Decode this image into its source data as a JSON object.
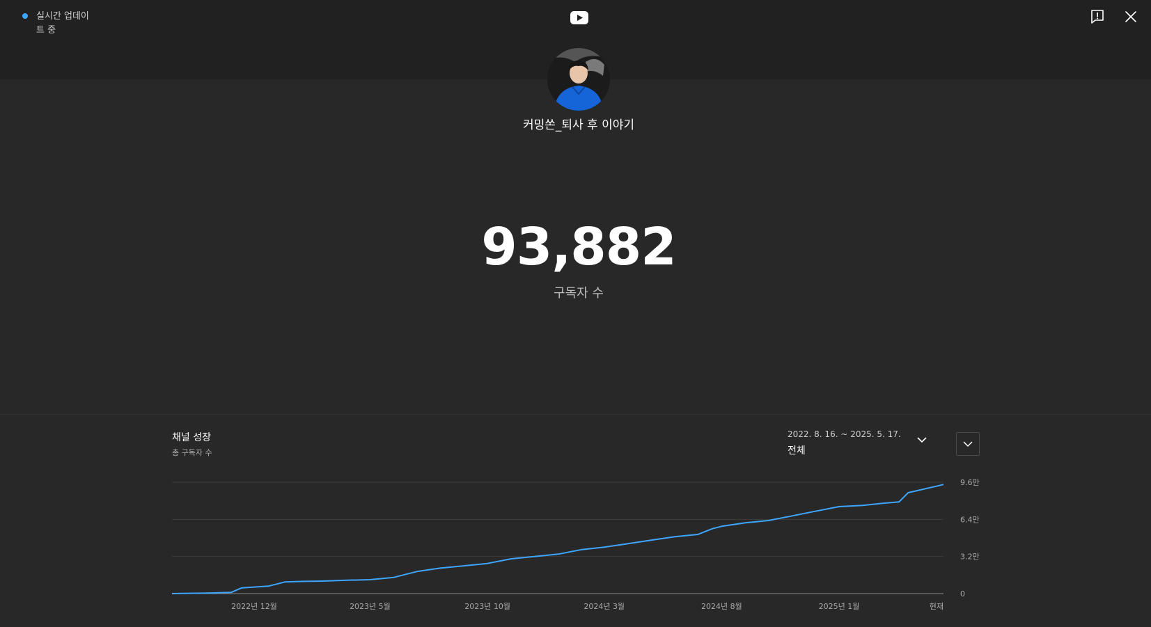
{
  "header": {
    "live_status": "실시간 업데이트 중"
  },
  "icons": {
    "live": "live-dot-icon",
    "logo": "youtube-logo-icon",
    "report": "feedback-report-icon",
    "close": "close-icon",
    "chevron": "chevron-down-icon"
  },
  "channel": {
    "name": "커밍쏜_퇴사 후 이야기",
    "subscriber_count": "93,882",
    "subscriber_label": "구독자 수"
  },
  "growth": {
    "title": "채널 성장",
    "subtitle": "총 구독자 수",
    "range_dates": "2022. 8. 16. ~ 2025. 5. 17.",
    "range_value": "전체"
  },
  "colors": {
    "accent": "#3ea6ff",
    "background": "#282828",
    "header_bg": "#212121"
  },
  "chart_data": {
    "type": "line",
    "title": "",
    "xlabel": "",
    "ylabel": "",
    "grid": true,
    "x_tick_labels": [
      "2022년 12월",
      "2023년 5월",
      "2023년 10월",
      "2024년 3월",
      "2024년 8월",
      "2025년 1월",
      "현재"
    ],
    "x_tick_dates": [
      "2022-12-01",
      "2023-05-01",
      "2023-10-01",
      "2024-03-01",
      "2024-08-01",
      "2025-01-01",
      "2025-05-17"
    ],
    "y_tick_labels": [
      "0",
      "3.2만",
      "6.4만",
      "9.6만"
    ],
    "y_tick_values": [
      0,
      32000,
      64000,
      96000
    ],
    "ylim": [
      0,
      96000
    ],
    "xlim": [
      "2022-08-16",
      "2025-05-17"
    ],
    "series": [
      {
        "x": [
          "2022-08-16",
          "2022-10-01",
          "2022-11-01",
          "2022-11-15",
          "2022-12-20",
          "2023-01-10",
          "2023-02-01",
          "2023-03-01",
          "2023-04-01",
          "2023-05-01",
          "2023-06-01",
          "2023-07-01",
          "2023-08-01",
          "2023-09-01",
          "2023-10-01",
          "2023-11-01",
          "2023-12-01",
          "2024-01-01",
          "2024-02-01",
          "2024-03-01",
          "2024-04-01",
          "2024-05-01",
          "2024-06-01",
          "2024-07-01",
          "2024-07-20",
          "2024-08-01",
          "2024-09-01",
          "2024-10-01",
          "2024-11-01",
          "2024-12-01",
          "2025-01-01",
          "2025-02-01",
          "2025-03-01",
          "2025-03-20",
          "2025-04-01",
          "2025-05-17"
        ],
        "y": [
          0,
          500,
          1000,
          5000,
          6500,
          10000,
          10500,
          10800,
          11500,
          12000,
          14000,
          19000,
          22000,
          24000,
          26000,
          30000,
          32000,
          34000,
          38000,
          40000,
          43000,
          46000,
          49000,
          51000,
          56000,
          58000,
          61000,
          63000,
          67000,
          71000,
          75000,
          76000,
          78000,
          79000,
          87000,
          94000
        ]
      }
    ]
  }
}
